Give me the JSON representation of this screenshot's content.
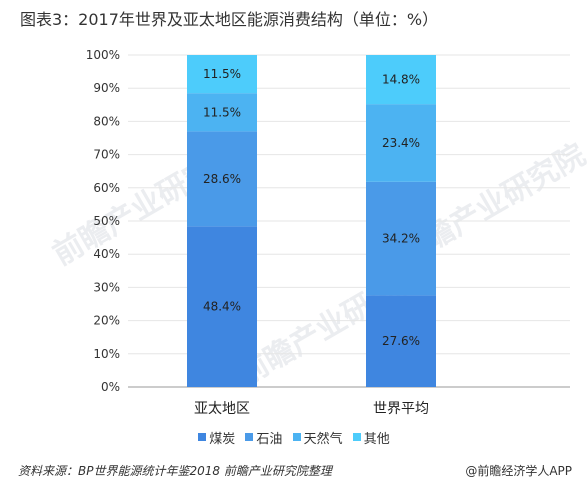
{
  "title": "图表3：2017年世界及亚太地区能源消费结构（单位：%）",
  "source": "资料来源：BP世界能源统计年鉴2018  前瞻产业研究院整理",
  "brand": "@前瞻经济学人APP",
  "watermark": "前瞻产业研究院",
  "colors": {
    "煤炭": "#3f86e0",
    "石油": "#4a9ae8",
    "天然气": "#4cb3f2",
    "其他": "#4dccfb"
  },
  "chart_data": {
    "type": "bar",
    "stacked": true,
    "categories": [
      "亚太地区",
      "世界平均"
    ],
    "series": [
      {
        "name": "煤炭",
        "values": [
          48.4,
          27.6
        ]
      },
      {
        "name": "石油",
        "values": [
          28.6,
          34.2
        ]
      },
      {
        "name": "天然气",
        "values": [
          11.5,
          23.4
        ]
      },
      {
        "name": "其他",
        "values": [
          11.5,
          14.8
        ]
      }
    ],
    "data_labels": [
      [
        "48.4%",
        "27.6%"
      ],
      [
        "28.6%",
        "34.2%"
      ],
      [
        "11.5%",
        "23.4%"
      ],
      [
        "11.5%",
        "14.8%"
      ]
    ],
    "ylim": [
      0,
      100
    ],
    "yticks": [
      "0%",
      "10%",
      "20%",
      "30%",
      "40%",
      "50%",
      "60%",
      "70%",
      "80%",
      "90%",
      "100%"
    ],
    "grid": true,
    "legend_position": "bottom"
  }
}
